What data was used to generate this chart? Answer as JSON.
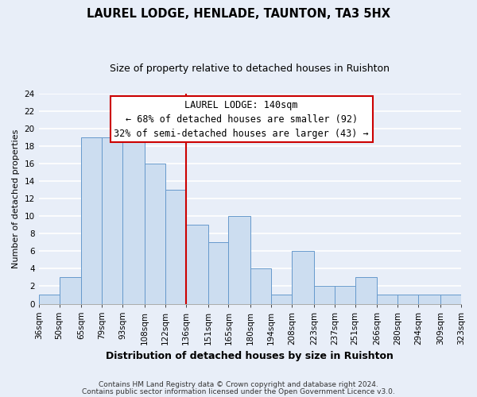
{
  "title": "LAUREL LODGE, HENLADE, TAUNTON, TA3 5HX",
  "subtitle": "Size of property relative to detached houses in Ruishton",
  "xlabel": "Distribution of detached houses by size in Ruishton",
  "ylabel": "Number of detached properties",
  "bin_edges": [
    36,
    50,
    65,
    79,
    93,
    108,
    122,
    136,
    151,
    165,
    180,
    194,
    208,
    223,
    237,
    251,
    266,
    280,
    294,
    309,
    323
  ],
  "bin_labels": [
    "36sqm",
    "50sqm",
    "65sqm",
    "79sqm",
    "93sqm",
    "108sqm",
    "122sqm",
    "136sqm",
    "151sqm",
    "165sqm",
    "180sqm",
    "194sqm",
    "208sqm",
    "223sqm",
    "237sqm",
    "251sqm",
    "266sqm",
    "280sqm",
    "294sqm",
    "309sqm",
    "323sqm"
  ],
  "counts": [
    1,
    3,
    19,
    19,
    19,
    16,
    13,
    9,
    7,
    10,
    4,
    1,
    6,
    2,
    2,
    3,
    1,
    1,
    1,
    1
  ],
  "bar_color": "#ccddf0",
  "bar_edge_color": "#6699cc",
  "vline_x": 136,
  "vline_color": "#cc0000",
  "annotation_title": "LAUREL LODGE: 140sqm",
  "annotation_line1": "← 68% of detached houses are smaller (92)",
  "annotation_line2": "32% of semi-detached houses are larger (43) →",
  "annotation_box_facecolor": "#ffffff",
  "annotation_box_edgecolor": "#cc0000",
  "ylim": [
    0,
    24
  ],
  "yticks": [
    0,
    2,
    4,
    6,
    8,
    10,
    12,
    14,
    16,
    18,
    20,
    22,
    24
  ],
  "footnote1": "Contains HM Land Registry data © Crown copyright and database right 2024.",
  "footnote2": "Contains public sector information licensed under the Open Government Licence v3.0.",
  "fig_bg_color": "#e8eef8",
  "plot_bg_color": "#e8eef8",
  "grid_color": "#ffffff",
  "title_fontsize": 10.5,
  "subtitle_fontsize": 9,
  "ylabel_fontsize": 8,
  "xlabel_fontsize": 9,
  "tick_fontsize": 7.5,
  "annot_fontsize": 8.5,
  "footnote_fontsize": 6.5
}
